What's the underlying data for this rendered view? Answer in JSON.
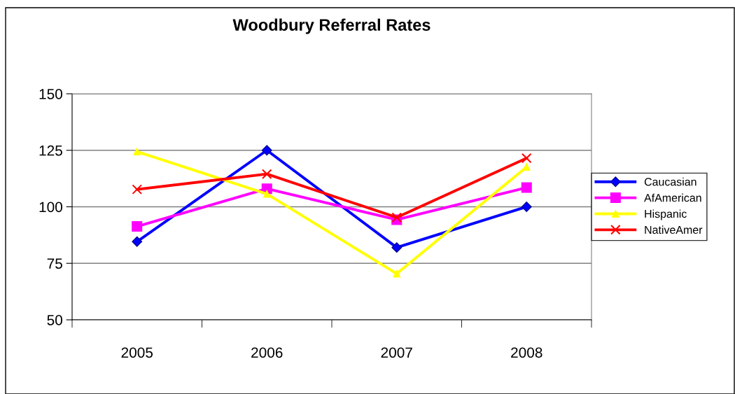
{
  "chart_data": {
    "type": "line",
    "title": "Woodbury Referral Rates",
    "categories": [
      "2005",
      "2006",
      "2007",
      "2008"
    ],
    "series": [
      {
        "name": "Caucasian",
        "color": "#0000ff",
        "marker": "diamond",
        "values": [
          84.6,
          125,
          82,
          100
        ]
      },
      {
        "name": "AfAmerican",
        "color": "#ff00ff",
        "marker": "square",
        "values": [
          91.3,
          108,
          94.3,
          108.5
        ]
      },
      {
        "name": "Hispanic",
        "color": "#ffff00",
        "marker": "triangle",
        "values": [
          124.4,
          105.7,
          70.4,
          117.6
        ]
      },
      {
        "name": "NativeAmer",
        "color": "#ff0000",
        "marker": "cross",
        "values": [
          107.7,
          114.5,
          95.3,
          121.5
        ]
      }
    ],
    "ylim": [
      50,
      150
    ],
    "yticks": [
      50,
      75,
      100,
      125,
      150
    ],
    "grid": "y",
    "legend": "right"
  }
}
